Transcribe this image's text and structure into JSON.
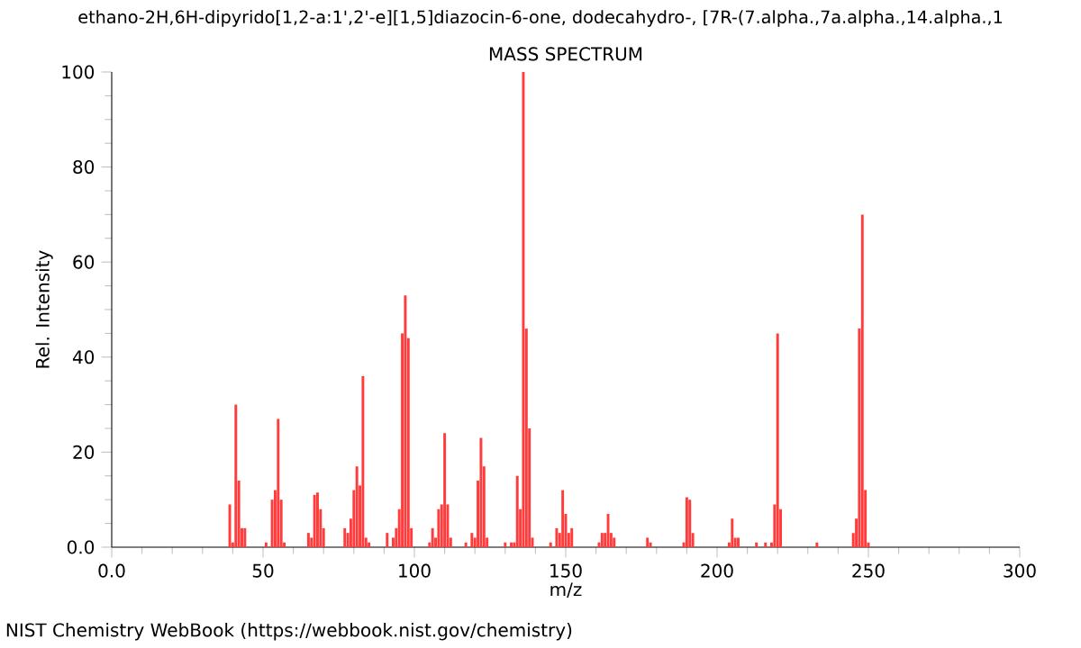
{
  "chart_data": {
    "type": "bar",
    "title": "MASS SPECTRUM",
    "subtitle": "ethano-2H,6H-dipyrido[1,2-a:1',2'-e][1,5]diazocin-6-one, dodecahydro-, [7R-(7.alpha.,7a.alpha.,14.alpha.,1",
    "xlabel": "m/z",
    "ylabel": "Rel. Intensity",
    "annotations": [
      "NIST Chemistry WebBook (https://webbook.nist.gov/chemistry)"
    ],
    "color": "#ff3b3b",
    "x": [
      39,
      40,
      41,
      42,
      43,
      44,
      51,
      53,
      54,
      55,
      56,
      57,
      65,
      66,
      67,
      68,
      69,
      70,
      77,
      78,
      79,
      80,
      81,
      82,
      83,
      84,
      85,
      91,
      93,
      94,
      95,
      96,
      97,
      98,
      99,
      105,
      106,
      107,
      108,
      109,
      110,
      111,
      112,
      117,
      119,
      120,
      121,
      122,
      123,
      124,
      130,
      132,
      133,
      134,
      135,
      136,
      137,
      138,
      139,
      145,
      147,
      148,
      149,
      150,
      151,
      152,
      161,
      162,
      163,
      164,
      165,
      166,
      177,
      178,
      189,
      190,
      191,
      192,
      204,
      205,
      206,
      207,
      213,
      216,
      218,
      219,
      220,
      221,
      233,
      245,
      246,
      247,
      248,
      249,
      250
    ],
    "values": [
      9,
      1,
      30,
      14,
      4,
      4,
      1,
      10,
      12,
      27,
      10,
      1,
      3,
      2,
      11,
      11.5,
      8,
      4,
      4,
      3,
      6,
      12,
      17,
      13,
      36,
      2,
      1,
      3,
      2,
      4,
      8,
      45,
      53,
      44,
      4,
      1,
      4,
      2,
      8,
      9,
      24,
      9,
      2,
      1,
      3,
      2,
      14,
      23,
      17,
      2,
      1,
      1,
      1,
      15,
      8,
      100,
      46,
      25,
      2,
      1,
      4,
      3,
      12,
      7,
      3,
      4,
      1,
      3,
      3,
      7,
      3,
      2,
      2,
      1,
      1,
      10.5,
      10,
      3,
      1,
      6,
      2,
      2,
      1,
      1,
      1,
      9,
      45,
      8,
      1,
      3,
      6,
      46,
      70,
      12,
      1
    ],
    "xlim": [
      0,
      300
    ],
    "xticks": [
      {
        "value": 0,
        "label": "0.0"
      },
      50,
      100,
      150,
      200,
      250,
      300
    ],
    "ylim": [
      0,
      100
    ],
    "yticks": [
      {
        "value": 0,
        "label": "0.0"
      },
      20,
      40,
      60,
      80,
      100
    ],
    "grid": false
  }
}
